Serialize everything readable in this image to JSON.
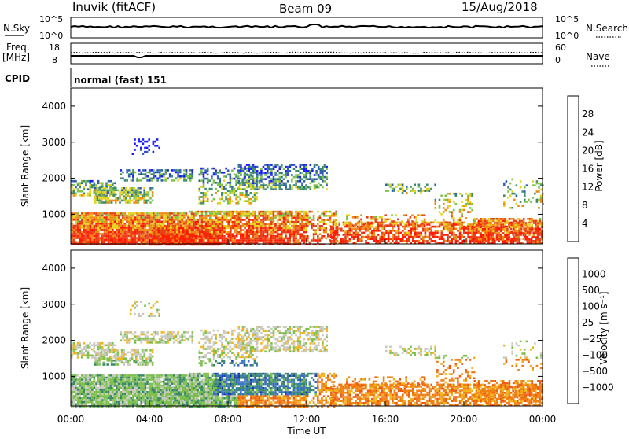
{
  "header": {
    "station": "Inuvik (fitACF)",
    "beam": "Beam 09",
    "date": "15/Aug/2018"
  },
  "noise_panel": {
    "left_label": "N.Sky",
    "left_ticks": [
      "10^5",
      "10^0"
    ],
    "right_label": "N.Search",
    "right_ticks": [
      "10^5",
      "10^0"
    ]
  },
  "freq_panel": {
    "left_label_line1": "Freq.",
    "left_label_line2": "[MHz]",
    "left_ticks": [
      "18",
      "8"
    ],
    "right_label": "Nave",
    "right_ticks": [
      "60",
      "0"
    ]
  },
  "cpid": {
    "label": "CPID",
    "value": "normal (fast) 151"
  },
  "x_axis": {
    "ticks": [
      "00:00",
      "04:00",
      "08:00",
      "12:00",
      "16:00",
      "20:00",
      "00:00"
    ],
    "title": "Time UT"
  },
  "chart_data": [
    {
      "type": "heatmap",
      "quantity": "Power",
      "ylabel": "Slant Range [km]",
      "yticks": [
        1000,
        2000,
        3000,
        4000
      ],
      "ylim": [
        180,
        4500
      ],
      "xlim_hours": [
        0,
        24
      ],
      "colorbar": {
        "label": "Power [dB]",
        "ticks": [
          "4",
          "8",
          "12",
          "16",
          "20",
          "24",
          "28"
        ],
        "colors": [
          "#1a1aff",
          "#2f5fb0",
          "#3c8c6e",
          "#7fc24a",
          "#e6d21a",
          "#f08a12",
          "#e4421a",
          "#ff1a00"
        ]
      }
    },
    {
      "type": "heatmap",
      "quantity": "Velocity",
      "ylabel": "Slant Range [km]",
      "yticks": [
        1000,
        2000,
        3000,
        4000
      ],
      "ylim": [
        180,
        4500
      ],
      "xlim_hours": [
        0,
        24
      ],
      "colorbar": {
        "label": "Velocity [m s⁻¹]",
        "ticks": [
          "1000",
          "500",
          "100",
          "25",
          "−25",
          "−100",
          "−500",
          "−1000"
        ],
        "colors": [
          "#1f3fa8",
          "#3a73c6",
          "#3a8a6a",
          "#7cc04a",
          "#c8c8c0",
          "#f2b41a",
          "#f08012",
          "#ee5a10",
          "#ff1a00"
        ]
      }
    }
  ]
}
